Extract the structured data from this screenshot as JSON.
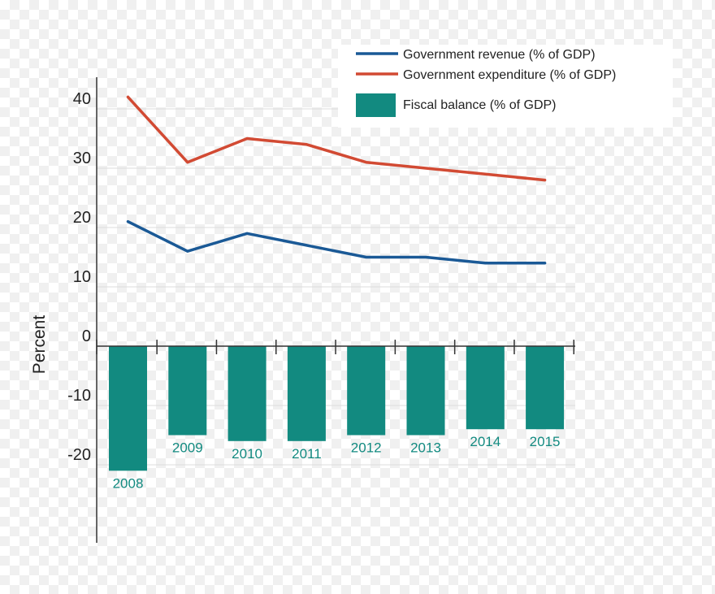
{
  "chart_data": {
    "type": "bar",
    "xlabel": "",
    "ylabel": "Percent",
    "ylim": [
      -26,
      46
    ],
    "yticks": [
      40,
      30,
      20,
      10,
      0,
      -10,
      -20
    ],
    "categories": [
      "2008",
      "2009",
      "2010",
      "2011",
      "2012",
      "2013",
      "2014",
      "2015"
    ],
    "series": [
      {
        "name": "Government revenue (% of GDP)",
        "kind": "line",
        "color": "#1a5996",
        "values": [
          21,
          16,
          19,
          17,
          15,
          15,
          14,
          14
        ]
      },
      {
        "name": "Government expenditure (% of GDP)",
        "kind": "line",
        "color": "#d24a33",
        "values": [
          42,
          31,
          35,
          34,
          31,
          30,
          29,
          28
        ]
      },
      {
        "name": "Fiscal balance (% of GDP)",
        "kind": "bar",
        "color": "#128a80",
        "values": [
          -21,
          -15,
          -16,
          -16,
          -15,
          -15,
          -14,
          -14
        ]
      }
    ],
    "legend_position": "top-right",
    "grid": true
  }
}
